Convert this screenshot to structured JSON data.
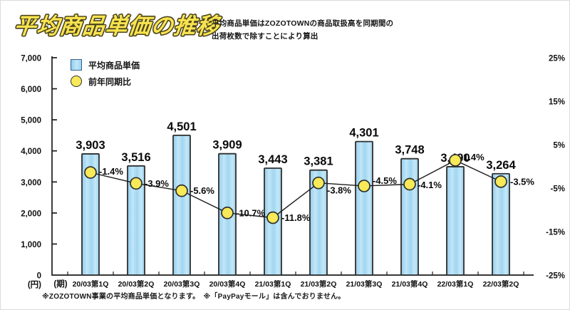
{
  "header": {
    "title": "平均商品単価の推移",
    "title_fill": "#f9e44f",
    "title_outline": "#4a431c",
    "subtitle_lines": [
      "平均商品単価はZOZOTOWNの商品取扱高を同期間の",
      "出荷枚数で除すことにより算出"
    ]
  },
  "legend": {
    "position": "top-left",
    "items": [
      {
        "label": "平均商品単価",
        "swatch": "blue-square"
      },
      {
        "label": "前年同期比",
        "swatch": "yellow-circle"
      }
    ]
  },
  "chart_data": {
    "type": "bar+line",
    "title": "平均商品単価の推移",
    "grid": false,
    "legend_position": "top-left",
    "categories": [
      "20/03第1Q",
      "20/03第2Q",
      "20/03第3Q",
      "20/03第4Q",
      "21/03第1Q",
      "21/03第2Q",
      "21/03第3Q",
      "21/03第4Q",
      "22/03第1Q",
      "22/03第2Q"
    ],
    "x_axis": {
      "unit": "(期)"
    },
    "left_axis": {
      "unit": "(円)",
      "min": 0,
      "max": 7000,
      "tick_step": 1000,
      "ticks": [
        "0",
        "1,000",
        "2,000",
        "3,000",
        "4,000",
        "5,000",
        "6,000",
        "7,000"
      ]
    },
    "right_axis": {
      "min": -25,
      "max": 25,
      "ticks": [
        "25%",
        "15%",
        "5%",
        "-5%",
        "-15%",
        "-25%"
      ]
    },
    "series": [
      {
        "name": "平均商品単価",
        "type": "bar",
        "axis": "left",
        "values": [
          3903,
          3516,
          4501,
          3909,
          3443,
          3381,
          4301,
          3748,
          3490,
          3264
        ],
        "labels": [
          "3,903",
          "3,516",
          "4,501",
          "3,909",
          "3,443",
          "3,381",
          "4,301",
          "3,748",
          "3,490",
          "3,264"
        ]
      },
      {
        "name": "前年同期比",
        "type": "line",
        "axis": "right",
        "values": [
          -1.4,
          -3.9,
          -5.6,
          -10.7,
          -11.8,
          -3.8,
          -4.5,
          -4.1,
          1.4,
          -3.5
        ],
        "labels": [
          "-1.4%",
          "-3.9%",
          "-5.6%",
          "-10.7%",
          "-11.8%",
          "-3.8%",
          "-4.5%",
          "-4.1%",
          "1.4%",
          "-3.5%"
        ]
      }
    ],
    "colors": {
      "bar_fill": "#a6d8f2",
      "bar_stroke": "#2f2f2f",
      "marker_fill": "#f7e957",
      "line": "#1c1c1c",
      "legend_square_border": "#35618f"
    }
  },
  "footnote": "※ZOZOTOWN事業の平均商品単価となります。　※「PayPayモール」は含んでおりません。"
}
